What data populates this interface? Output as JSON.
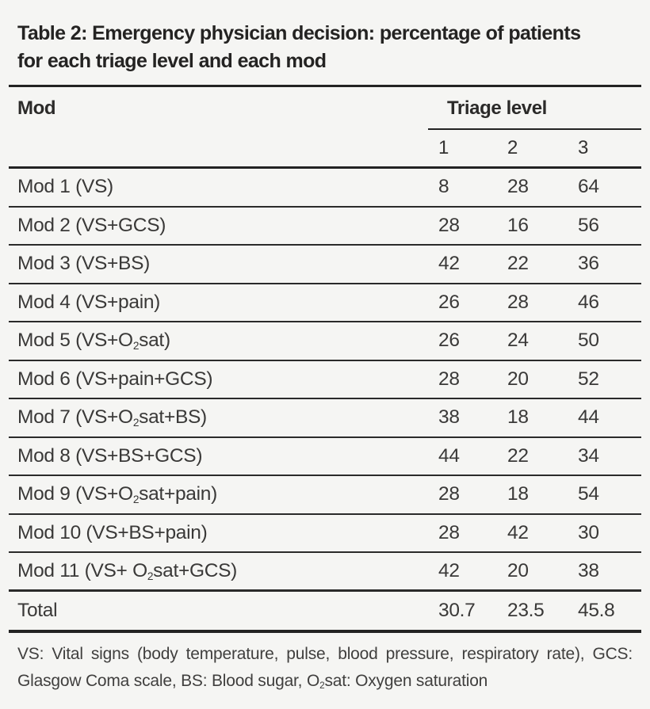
{
  "title": {
    "line1": "Table 2: Emergency physician decision: percentage of patients",
    "line2": "for each triage level and each mod"
  },
  "table": {
    "col_header": "Mod",
    "group_header": "Triage level",
    "sub_headers": [
      "1",
      "2",
      "3"
    ],
    "rows": [
      {
        "label_pre": "Mod 1 (VS)",
        "label_sub": "",
        "label_post": "",
        "values": [
          "8",
          "28",
          "64"
        ]
      },
      {
        "label_pre": "Mod 2 (VS+GCS)",
        "label_sub": "",
        "label_post": "",
        "values": [
          "28",
          "16",
          "56"
        ]
      },
      {
        "label_pre": "Mod 3 (VS+BS)",
        "label_sub": "",
        "label_post": "",
        "values": [
          "42",
          "22",
          "36"
        ]
      },
      {
        "label_pre": "Mod 4 (VS+pain)",
        "label_sub": "",
        "label_post": "",
        "values": [
          "26",
          "28",
          "46"
        ]
      },
      {
        "label_pre": "Mod 5 (VS+O",
        "label_sub": "2",
        "label_post": "sat)",
        "values": [
          "26",
          "24",
          "50"
        ]
      },
      {
        "label_pre": "Mod 6 (VS+pain+GCS)",
        "label_sub": "",
        "label_post": "",
        "values": [
          "28",
          "20",
          "52"
        ]
      },
      {
        "label_pre": "Mod 7 (VS+O",
        "label_sub": "2",
        "label_post": "sat+BS)",
        "values": [
          "38",
          "18",
          "44"
        ]
      },
      {
        "label_pre": "Mod 8 (VS+BS+GCS)",
        "label_sub": "",
        "label_post": "",
        "values": [
          "44",
          "22",
          "34"
        ]
      },
      {
        "label_pre": "Mod 9 (VS+O",
        "label_sub": "2",
        "label_post": "sat+pain)",
        "values": [
          "28",
          "18",
          "54"
        ]
      },
      {
        "label_pre": "Mod 10 (VS+BS+pain)",
        "label_sub": "",
        "label_post": "",
        "values": [
          "28",
          "42",
          "30"
        ]
      },
      {
        "label_pre": "Mod 11 (VS+ O",
        "label_sub": "2",
        "label_post": "sat+GCS)",
        "values": [
          "42",
          "20",
          "38"
        ]
      }
    ],
    "total_row": {
      "label": "Total",
      "values": [
        "30.7",
        "23.5",
        "45.8"
      ]
    }
  },
  "footnote": {
    "line1": "VS: Vital signs (body temperature, pulse, blood pressure, respiratory rate), GCS:",
    "line2_pre": "Glasgow Coma scale, BS: Blood sugar, O",
    "line2_sub": "2",
    "line2_post": "sat: Oxygen saturation"
  },
  "colors": {
    "background": "#f5f5f3",
    "rule": "#232323",
    "text": "#3a3938"
  }
}
